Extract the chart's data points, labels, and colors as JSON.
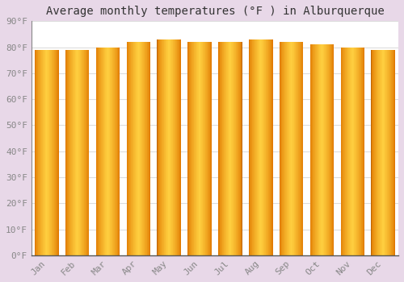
{
  "title": "Average monthly temperatures (°F ) in Alburquerque",
  "categories": [
    "Jan",
    "Feb",
    "Mar",
    "Apr",
    "May",
    "Jun",
    "Jul",
    "Aug",
    "Sep",
    "Oct",
    "Nov",
    "Dec"
  ],
  "values": [
    79,
    79,
    80,
    82,
    83,
    82,
    82,
    83,
    82,
    81,
    80,
    79
  ],
  "bar_color_dark": "#E07800",
  "bar_color_light": "#FFD040",
  "ylim": [
    0,
    90
  ],
  "yticks": [
    0,
    10,
    20,
    30,
    40,
    50,
    60,
    70,
    80,
    90
  ],
  "ytick_labels": [
    "0°F",
    "10°F",
    "20°F",
    "30°F",
    "40°F",
    "50°F",
    "60°F",
    "70°F",
    "80°F",
    "90°F"
  ],
  "outer_background": "#e8d8e8",
  "plot_background": "#ffffff",
  "grid_color": "#dddddd",
  "title_fontsize": 10,
  "tick_fontsize": 8,
  "tick_color": "#888888",
  "bar_width": 0.78,
  "bar_gap": 0.22,
  "num_gradient_strips": 40,
  "border_color": "#B87000",
  "border_linewidth": 0.8
}
